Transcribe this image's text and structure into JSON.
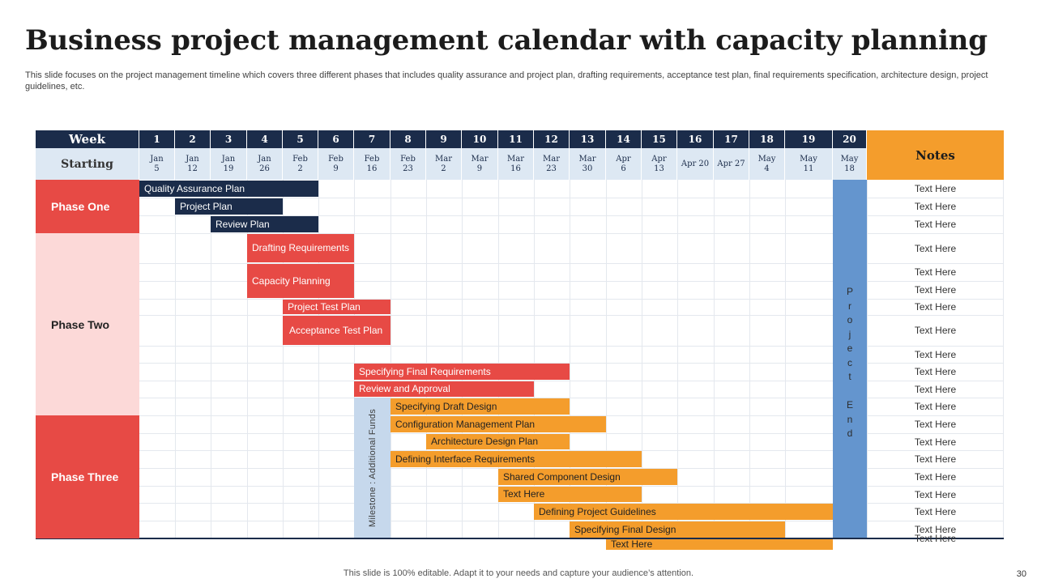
{
  "title": "Business project management calendar with capacity planning",
  "subtitle": "This slide focuses on the project management timeline which covers three different phases that includes quality assurance and project plan, drafting requirements, acceptance test plan, final requirements specification, architecture design, project guidelines, etc.",
  "header": {
    "week_label": "Week",
    "starting_label": "Starting",
    "notes_label": "Notes"
  },
  "weeks": [
    {
      "num": "1",
      "date": "Jan\n5"
    },
    {
      "num": "2",
      "date": "Jan\n12"
    },
    {
      "num": "3",
      "date": "Jan\n19"
    },
    {
      "num": "4",
      "date": "Jan\n26"
    },
    {
      "num": "5",
      "date": "Feb\n2"
    },
    {
      "num": "6",
      "date": "Feb\n9"
    },
    {
      "num": "7",
      "date": "Feb\n16"
    },
    {
      "num": "8",
      "date": "Feb\n23"
    },
    {
      "num": "9",
      "date": "Mar\n2"
    },
    {
      "num": "10",
      "date": "Mar\n9"
    },
    {
      "num": "11",
      "date": "Mar\n16"
    },
    {
      "num": "12",
      "date": "Mar\n23"
    },
    {
      "num": "13",
      "date": "Mar\n30"
    },
    {
      "num": "14",
      "date": "Apr\n6"
    },
    {
      "num": "15",
      "date": "Apr\n13"
    },
    {
      "num": "16",
      "date": "Apr 20"
    },
    {
      "num": "17",
      "date": "Apr 27"
    },
    {
      "num": "18",
      "date": "May\n4"
    },
    {
      "num": "19",
      "date": "May\n11"
    },
    {
      "num": "20",
      "date": "May\n18"
    }
  ],
  "phases": [
    {
      "label": "Phase One",
      "style": "red",
      "rows": [
        0,
        2
      ]
    },
    {
      "label": "Phase Two",
      "style": "pink",
      "rows": [
        3,
        11
      ]
    },
    {
      "label": "Phase Three",
      "style": "red",
      "rows": [
        12,
        20
      ]
    }
  ],
  "tasks": [
    {
      "label": "Quality Assurance Plan",
      "row": 0,
      "start_week": 1,
      "end_week": 5,
      "color": "navy"
    },
    {
      "label": "Project Plan",
      "row": 1,
      "start_week": 2,
      "end_week": 4,
      "color": "navy"
    },
    {
      "label": "Review Plan",
      "row": 2,
      "start_week": 3,
      "end_week": 5,
      "color": "navy"
    },
    {
      "label": "Drafting Requirements",
      "row": 3,
      "start_week": 4,
      "end_week": 6,
      "color": "red"
    },
    {
      "label": "Capacity Planning",
      "row": 4,
      "start_week": 4,
      "end_week": 6,
      "color": "red",
      "span_rows": 2
    },
    {
      "label": "Project Test Plan",
      "row": 6,
      "start_week": 5,
      "end_week": 7,
      "color": "red"
    },
    {
      "label": "Acceptance Test Plan",
      "row": 7,
      "start_week": 5,
      "end_week": 7,
      "color": "red",
      "wrap": true
    },
    {
      "label": "Specifying Final Requirements",
      "row": 9,
      "start_week": 7,
      "end_week": 12,
      "color": "red"
    },
    {
      "label": "Review and Approval",
      "row": 10,
      "start_week": 7,
      "end_week": 11,
      "color": "red"
    },
    {
      "label": "Specifying Draft Design",
      "row": 11,
      "start_week": 8,
      "end_week": 12,
      "color": "orange"
    },
    {
      "label": "Configuration Management Plan",
      "row": 12,
      "start_week": 8,
      "end_week": 13,
      "color": "orange"
    },
    {
      "label": "Architecture Design Plan",
      "row": 13,
      "start_week": 9,
      "end_week": 12,
      "color": "orange"
    },
    {
      "label": "Defining Interface Requirements",
      "row": 14,
      "start_week": 8,
      "end_week": 14,
      "color": "orange"
    },
    {
      "label": "Shared Component Design",
      "row": 15,
      "start_week": 11,
      "end_week": 15,
      "color": "orange"
    },
    {
      "label": "Text Here",
      "row": 16,
      "start_week": 11,
      "end_week": 14,
      "color": "orange"
    },
    {
      "label": "Defining Project Guidelines",
      "row": 17,
      "start_week": 12,
      "end_week": 19,
      "color": "orange"
    },
    {
      "label": "Specifying Final Design",
      "row": 18,
      "start_week": 13,
      "end_week": 18,
      "color": "orange"
    },
    {
      "label": "Text Here",
      "row": 19,
      "start_week": 14,
      "end_week": 19,
      "color": "orange"
    }
  ],
  "notes": [
    "Text Here",
    "Text Here",
    "Text Here",
    "Text Here",
    "Text Here",
    "Text Here",
    "Text Here",
    "Text Here",
    "Text Here",
    "Text Here",
    "Text Here",
    "Text Here",
    "Text Here",
    "Text Here",
    "Text Here",
    "Text Here",
    "Text Here",
    "Text Here",
    "Text Here",
    "Text Here"
  ],
  "milestone": {
    "label": "Milestone : Additional Funds",
    "week": 7,
    "from_row": 11
  },
  "project_end": {
    "label": "Project End",
    "week": 20
  },
  "colors": {
    "navy": "#1b2c4a",
    "red": "#e74a45",
    "pink": "#fcd9d8",
    "orange": "#f49d2c",
    "header_light": "#dde8f3",
    "milestone": "#c6d8ec",
    "project_end": "#6495ce"
  },
  "footer": "This slide is 100% editable. Adapt it to your needs and capture your audience’s attention.",
  "page_number": "30"
}
